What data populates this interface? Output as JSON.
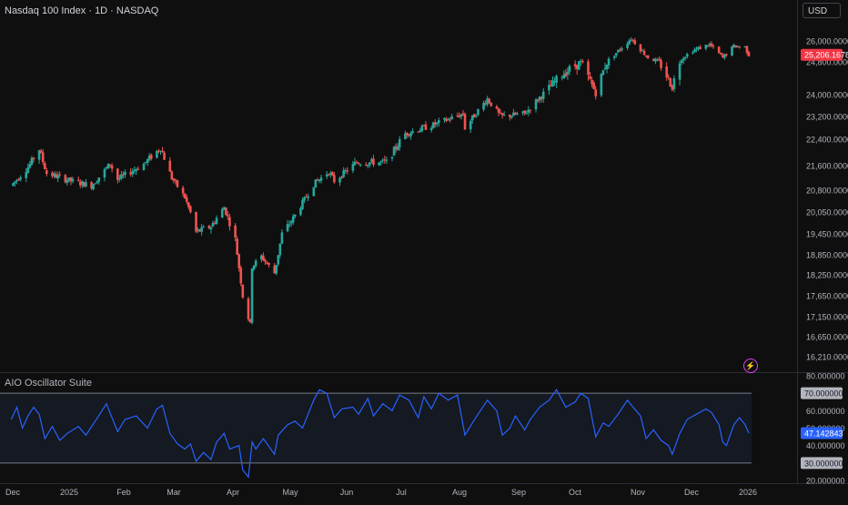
{
  "header": {
    "symbol_title": "Nasdaq 100 Index · 1D · NASDAQ",
    "currency": "USD",
    "oscillator_title": "AIO Oscillator Suite",
    "alert_icon": "lightning-bolt-icon"
  },
  "colors": {
    "background": "#0f0f0f",
    "up": "#26a69a",
    "down": "#ef5350",
    "oscillator_line": "#2962ff",
    "price_badge": "#f23645",
    "osc_badge": "#2962ff",
    "level_badge": "#b2b5be"
  },
  "chart_data": [
    {
      "type": "candlestick",
      "title": "Nasdaq 100 Index · 1D · NASDAQ",
      "x_ticks": [
        "Dec",
        "2025",
        "Feb",
        "Mar",
        "Apr",
        "May",
        "Jun",
        "Jul",
        "Aug",
        "Sep",
        "Oct",
        "Nov",
        "Dec",
        "2026"
      ],
      "y_ticks": [
        "26,000.000000",
        "24,800.000000",
        "24,000.000000",
        "23,200.000000",
        "22,400.000000",
        "21,600.000000",
        "20,800.000000",
        "20,050.000000",
        "19,450.000000",
        "18,850.000000",
        "18,250.000000",
        "17,650.000000",
        "17,150.000000",
        "16,650.000000",
        "16,210.000000"
      ],
      "last_price_label": "25,206.167800",
      "close_path": [
        [
          "2024-12-01",
          20950
        ],
        [
          "2024-12-10",
          21550
        ],
        [
          "2024-12-16",
          22100
        ],
        [
          "2024-12-20",
          21350
        ],
        [
          "2025-01-02",
          21100
        ],
        [
          "2025-01-13",
          20950
        ],
        [
          "2025-01-23",
          21650
        ],
        [
          "2025-01-27",
          21150
        ],
        [
          "2025-02-10",
          21650
        ],
        [
          "2025-02-19",
          22150
        ],
        [
          "2025-02-25",
          21200
        ],
        [
          "2025-03-04",
          20550
        ],
        [
          "2025-03-10",
          19500
        ],
        [
          "2025-03-18",
          19650
        ],
        [
          "2025-03-25",
          20200
        ],
        [
          "2025-03-31",
          19300
        ],
        [
          "2025-04-04",
          17650
        ],
        [
          "2025-04-08",
          16950
        ],
        [
          "2025-04-09",
          18500
        ],
        [
          "2025-04-14",
          18800
        ],
        [
          "2025-04-21",
          18300
        ],
        [
          "2025-04-25",
          19450
        ],
        [
          "2025-05-02",
          19950
        ],
        [
          "2025-05-12",
          21000
        ],
        [
          "2025-05-20",
          21400
        ],
        [
          "2025-05-23",
          21100
        ],
        [
          "2025-06-04",
          21700
        ],
        [
          "2025-06-20",
          21700
        ],
        [
          "2025-06-30",
          22600
        ],
        [
          "2025-07-15",
          22900
        ],
        [
          "2025-07-31",
          23300
        ],
        [
          "2025-08-01",
          22800
        ],
        [
          "2025-08-13",
          23850
        ],
        [
          "2025-08-20",
          23200
        ],
        [
          "2025-09-02",
          23300
        ],
        [
          "2025-09-10",
          23900
        ],
        [
          "2025-09-22",
          24500
        ],
        [
          "2025-10-02",
          24800
        ],
        [
          "2025-10-10",
          24050
        ],
        [
          "2025-10-15",
          24700
        ],
        [
          "2025-10-29",
          26150
        ],
        [
          "2025-11-04",
          25400
        ],
        [
          "2025-11-07",
          25050
        ],
        [
          "2025-11-13",
          24800
        ],
        [
          "2025-11-20",
          24200
        ],
        [
          "2025-11-25",
          25000
        ],
        [
          "2025-12-01",
          25450
        ],
        [
          "2025-12-10",
          25800
        ],
        [
          "2025-12-17",
          25050
        ],
        [
          "2025-12-23",
          25700
        ],
        [
          "2025-12-29",
          25650
        ],
        [
          "2025-12-31",
          25206.1678
        ]
      ]
    },
    {
      "type": "line",
      "title": "AIO Oscillator Suite",
      "y_ticks": [
        "80.000000",
        "70.000000",
        "60.000000",
        "50.000000",
        "47.142843",
        "40.000000",
        "30.000000",
        "20.000000"
      ],
      "ylim": [
        20,
        80
      ],
      "levels": [
        70,
        30
      ],
      "last_value_label": "47.142843",
      "series": [
        {
          "values": [
            [
              "2024-12-01",
              55
            ],
            [
              "2024-12-04",
              62
            ],
            [
              "2024-12-07",
              50
            ],
            [
              "2024-12-10",
              57
            ],
            [
              "2024-12-13",
              62
            ],
            [
              "2024-12-16",
              58
            ],
            [
              "2024-12-19",
              44
            ],
            [
              "2024-12-23",
              51
            ],
            [
              "2024-12-27",
              43
            ],
            [
              "2024-12-31",
              47
            ],
            [
              "2025-01-06",
              51
            ],
            [
              "2025-01-10",
              46
            ],
            [
              "2025-01-15",
              54
            ],
            [
              "2025-01-21",
              64
            ],
            [
              "2025-01-24",
              56
            ],
            [
              "2025-01-27",
              48
            ],
            [
              "2025-01-31",
              55
            ],
            [
              "2025-02-06",
              57
            ],
            [
              "2025-02-12",
              50
            ],
            [
              "2025-02-17",
              61
            ],
            [
              "2025-02-20",
              63
            ],
            [
              "2025-02-24",
              47
            ],
            [
              "2025-02-28",
              41
            ],
            [
              "2025-03-04",
              38
            ],
            [
              "2025-03-07",
              41
            ],
            [
              "2025-03-10",
              31
            ],
            [
              "2025-03-14",
              36
            ],
            [
              "2025-03-18",
              32
            ],
            [
              "2025-03-21",
              42
            ],
            [
              "2025-03-25",
              47
            ],
            [
              "2025-03-28",
              38
            ],
            [
              "2025-04-02",
              40
            ],
            [
              "2025-04-04",
              26
            ],
            [
              "2025-04-07",
              22
            ],
            [
              "2025-04-09",
              42
            ],
            [
              "2025-04-11",
              38
            ],
            [
              "2025-04-15",
              44
            ],
            [
              "2025-04-21",
              35
            ],
            [
              "2025-04-23",
              46
            ],
            [
              "2025-04-28",
              52
            ],
            [
              "2025-05-02",
              54
            ],
            [
              "2025-05-06",
              50
            ],
            [
              "2025-05-12",
              66
            ],
            [
              "2025-05-15",
              72
            ],
            [
              "2025-05-19",
              70
            ],
            [
              "2025-05-23",
              56
            ],
            [
              "2025-05-27",
              61
            ],
            [
              "2025-06-02",
              62
            ],
            [
              "2025-06-05",
              58
            ],
            [
              "2025-06-10",
              67
            ],
            [
              "2025-06-13",
              57
            ],
            [
              "2025-06-18",
              64
            ],
            [
              "2025-06-23",
              60
            ],
            [
              "2025-06-27",
              69
            ],
            [
              "2025-07-02",
              66
            ],
            [
              "2025-07-07",
              56
            ],
            [
              "2025-07-10",
              68
            ],
            [
              "2025-07-14",
              61
            ],
            [
              "2025-07-18",
              70
            ],
            [
              "2025-07-23",
              66
            ],
            [
              "2025-07-28",
              69
            ],
            [
              "2025-08-01",
              46
            ],
            [
              "2025-08-05",
              53
            ],
            [
              "2025-08-08",
              58
            ],
            [
              "2025-08-13",
              66
            ],
            [
              "2025-08-18",
              60
            ],
            [
              "2025-08-21",
              46
            ],
            [
              "2025-08-25",
              50
            ],
            [
              "2025-08-28",
              57
            ],
            [
              "2025-09-02",
              49
            ],
            [
              "2025-09-05",
              55
            ],
            [
              "2025-09-10",
              62
            ],
            [
              "2025-09-15",
              66
            ],
            [
              "2025-09-19",
              72
            ],
            [
              "2025-09-24",
              62
            ],
            [
              "2025-09-29",
              65
            ],
            [
              "2025-10-02",
              70
            ],
            [
              "2025-10-06",
              67
            ],
            [
              "2025-10-10",
              45
            ],
            [
              "2025-10-14",
              53
            ],
            [
              "2025-10-17",
              51
            ],
            [
              "2025-10-22",
              58
            ],
            [
              "2025-10-27",
              66
            ],
            [
              "2025-10-30",
              62
            ],
            [
              "2025-11-03",
              57
            ],
            [
              "2025-11-06",
              44
            ],
            [
              "2025-11-10",
              49
            ],
            [
              "2025-11-14",
              43
            ],
            [
              "2025-11-18",
              40
            ],
            [
              "2025-11-20",
              35
            ],
            [
              "2025-11-24",
              47
            ],
            [
              "2025-11-28",
              55
            ],
            [
              "2025-12-03",
              58
            ],
            [
              "2025-12-08",
              61
            ],
            [
              "2025-12-11",
              59
            ],
            [
              "2025-12-15",
              52
            ],
            [
              "2025-12-17",
              42
            ],
            [
              "2025-12-19",
              40
            ],
            [
              "2025-12-23",
              52
            ],
            [
              "2025-12-26",
              56
            ],
            [
              "2025-12-29",
              52
            ],
            [
              "2025-12-31",
              47.142843
            ]
          ]
        }
      ]
    }
  ]
}
